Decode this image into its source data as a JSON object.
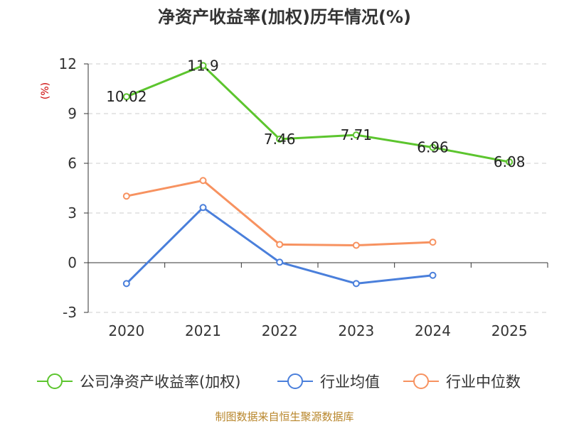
{
  "chart_data": {
    "type": "line",
    "title": "净资产收益率(加权)历年情况(%)",
    "unit_label": "(%)",
    "categories": [
      "2020",
      "2021",
      "2022",
      "2023",
      "2024",
      "2025"
    ],
    "ylim": [
      -3,
      12
    ],
    "yticks": [
      -3,
      0,
      3,
      6,
      9,
      12
    ],
    "grid": true,
    "legend_position": "bottom",
    "series": [
      {
        "name": "公司净资产收益率(加权)",
        "color": "#5cc52e",
        "values": [
          10.02,
          11.9,
          7.46,
          7.71,
          6.96,
          6.08
        ],
        "labels": [
          "10.02",
          "11.9",
          "7.46",
          "7.71",
          "6.96",
          "6.08"
        ]
      },
      {
        "name": "行业均值",
        "color": "#4a7fdb",
        "values": [
          -1.26,
          3.33,
          0.03,
          -1.26,
          -0.76,
          null
        ]
      },
      {
        "name": "行业中位数",
        "color": "#f79260",
        "values": [
          4.02,
          4.96,
          1.1,
          1.05,
          1.24,
          null
        ]
      }
    ],
    "source": "制图数据来自恒生聚源数据库"
  }
}
